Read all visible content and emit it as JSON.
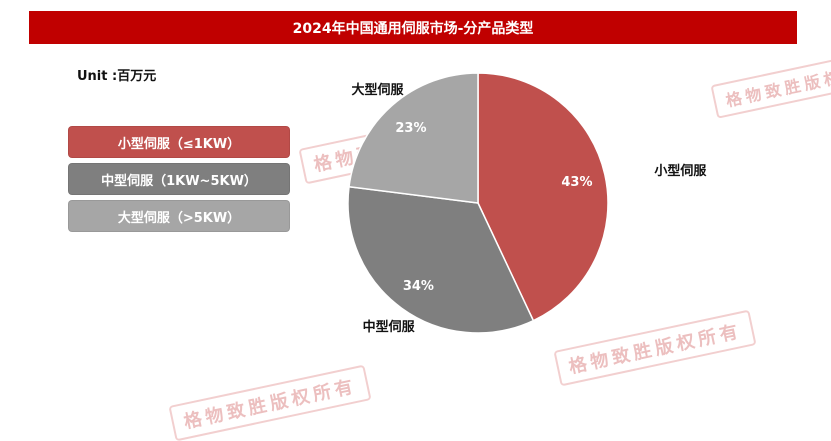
{
  "title": "2024年中国通用伺服市场-分产品类型",
  "unit": "Unit :百万元",
  "watermark": "格物致胜版权所有",
  "colors": {
    "title_bg": "#c00000"
  },
  "chart_data": {
    "type": "pie",
    "slices": [
      {
        "label": "小型伺服",
        "legend": "小型伺服（≤1KW）",
        "value": 43,
        "value_label": "43%",
        "color": "#c0504d"
      },
      {
        "label": "中型伺服",
        "legend": "中型伺服（1KW~5KW）",
        "value": 34,
        "value_label": "34%",
        "color": "#7f7f7f"
      },
      {
        "label": "大型伺服",
        "legend": "大型伺服（>5KW）",
        "value": 23,
        "value_label": "23%",
        "color": "#a6a6a6"
      }
    ]
  }
}
